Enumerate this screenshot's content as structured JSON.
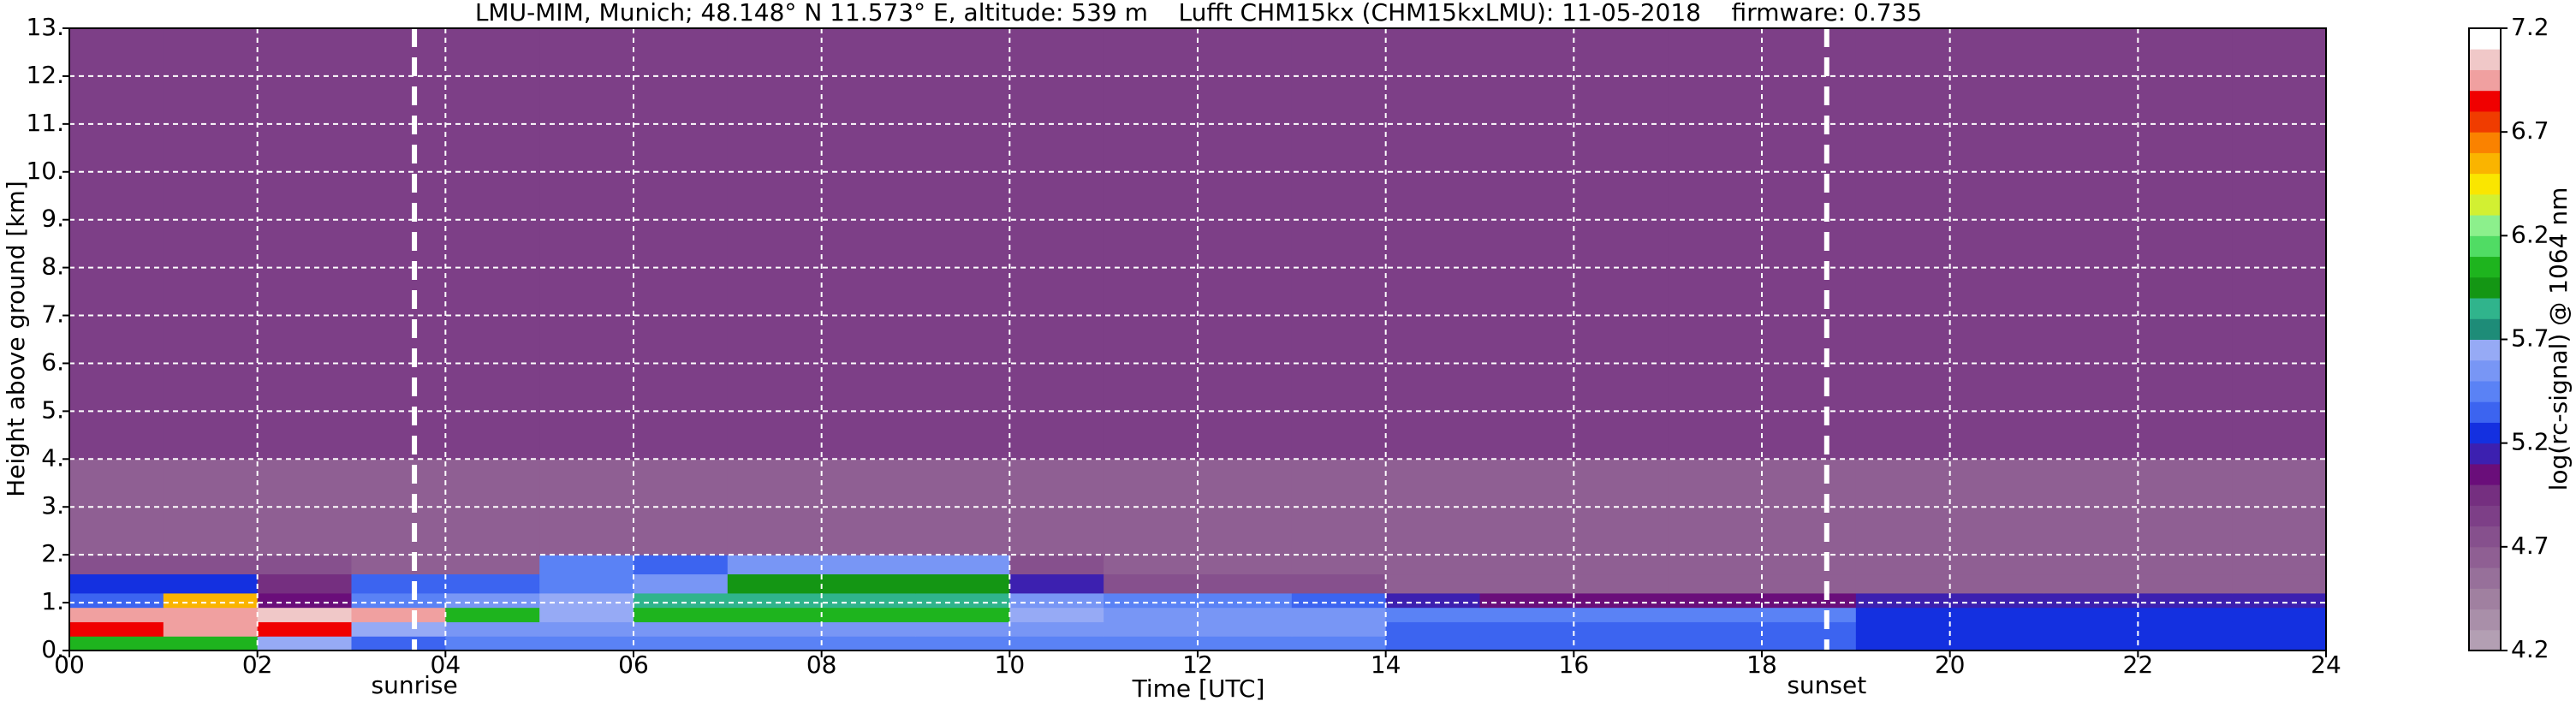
{
  "chart_data": {
    "type": "heatmap",
    "title": "LMU-MIM, Munich; 48.148° N 11.573° E, altitude: 539 m    Lufft CHM15kx (CHM15kxLMU): 11-05-2018    firmware: 0.735",
    "xlabel": "Time [UTC]",
    "ylabel": "Height above ground [km]",
    "colorbar_label": "log(rc-signal) @ 1064 nm",
    "xlim": [
      0,
      24
    ],
    "ylim": [
      0,
      13
    ],
    "xticks": [
      {
        "value": 0,
        "label": "00"
      },
      {
        "value": 2,
        "label": "02"
      },
      {
        "value": 4,
        "label": "04"
      },
      {
        "value": 6,
        "label": "06"
      },
      {
        "value": 8,
        "label": "08"
      },
      {
        "value": 10,
        "label": "10"
      },
      {
        "value": 12,
        "label": "12"
      },
      {
        "value": 14,
        "label": "14"
      },
      {
        "value": 16,
        "label": "16"
      },
      {
        "value": 18,
        "label": "18"
      },
      {
        "value": 20,
        "label": "20"
      },
      {
        "value": 22,
        "label": "22"
      },
      {
        "value": 24,
        "label": "24"
      }
    ],
    "yticks": [
      {
        "value": 0,
        "label": "0."
      },
      {
        "value": 1,
        "label": "1."
      },
      {
        "value": 2,
        "label": "2."
      },
      {
        "value": 3,
        "label": "3."
      },
      {
        "value": 4,
        "label": "4."
      },
      {
        "value": 5,
        "label": "5."
      },
      {
        "value": 6,
        "label": "6."
      },
      {
        "value": 7,
        "label": "7."
      },
      {
        "value": 8,
        "label": "8."
      },
      {
        "value": 9,
        "label": "9."
      },
      {
        "value": 10,
        "label": "10."
      },
      {
        "value": 11,
        "label": "11."
      },
      {
        "value": 12,
        "label": "12."
      },
      {
        "value": 13,
        "label": "13."
      }
    ],
    "grid": true,
    "x_edges": [
      0,
      1,
      2,
      3,
      4,
      5,
      6,
      7,
      8,
      9,
      10,
      11,
      12,
      13,
      14,
      15,
      16,
      17,
      18,
      19,
      20,
      21,
      22,
      23,
      24
    ],
    "y_edges": [
      0,
      0.3,
      0.6,
      0.9,
      1.2,
      1.6,
      2,
      4,
      13
    ],
    "z": [
      [
        6.0,
        6.0,
        5.6,
        5.3,
        5.4,
        5.4,
        5.4,
        5.4,
        5.4,
        5.4,
        5.4,
        5.4,
        5.4,
        5.4,
        5.3,
        5.3,
        5.3,
        5.3,
        5.3,
        5.2,
        5.2,
        5.2,
        5.2,
        5.2
      ],
      [
        6.8,
        6.9,
        6.8,
        5.6,
        5.5,
        5.5,
        5.5,
        5.5,
        5.5,
        5.5,
        5.5,
        5.5,
        5.5,
        5.5,
        5.3,
        5.3,
        5.3,
        5.3,
        5.3,
        5.2,
        5.2,
        5.2,
        5.2,
        5.2
      ],
      [
        6.9,
        6.9,
        7.0,
        6.9,
        6.0,
        5.6,
        6.0,
        6.0,
        6.0,
        6.0,
        5.6,
        5.5,
        5.5,
        5.5,
        5.4,
        5.4,
        5.4,
        5.4,
        5.4,
        5.2,
        5.2,
        5.2,
        5.2,
        5.2
      ],
      [
        5.3,
        6.5,
        5.0,
        5.4,
        5.5,
        5.6,
        5.8,
        5.8,
        5.8,
        5.8,
        5.5,
        5.4,
        5.4,
        5.3,
        5.1,
        5.0,
        5.0,
        5.0,
        5.0,
        5.1,
        5.1,
        5.1,
        5.1,
        5.1
      ],
      [
        5.2,
        5.2,
        4.9,
        5.3,
        5.3,
        5.4,
        5.5,
        5.9,
        5.9,
        5.9,
        5.1,
        4.7,
        4.7,
        4.7,
        4.6,
        4.6,
        4.6,
        4.6,
        4.6,
        4.6,
        4.6,
        4.6,
        4.6,
        4.6
      ],
      [
        4.7,
        4.7,
        4.7,
        4.6,
        4.6,
        5.4,
        5.3,
        5.5,
        5.5,
        5.5,
        4.7,
        4.6,
        4.6,
        4.6,
        4.6,
        4.6,
        4.6,
        4.6,
        4.6,
        4.6,
        4.6,
        4.6,
        4.6,
        4.6
      ],
      [
        4.6,
        4.6,
        4.6,
        4.6,
        4.6,
        4.6,
        4.6,
        4.6,
        4.6,
        4.6,
        4.6,
        4.6,
        4.6,
        4.6,
        4.6,
        4.6,
        4.6,
        4.6,
        4.6,
        4.6,
        4.6,
        4.6,
        4.6,
        4.6
      ],
      [
        4.8,
        4.8,
        4.8,
        4.8,
        4.8,
        4.8,
        4.8,
        4.8,
        4.8,
        4.8,
        4.8,
        4.8,
        4.8,
        4.8,
        4.8,
        4.8,
        4.8,
        4.8,
        4.8,
        4.8,
        4.8,
        4.8,
        4.8,
        4.8
      ]
    ],
    "clim": [
      4.2,
      7.2
    ],
    "cticks": [
      4.2,
      4.7,
      5.2,
      5.7,
      6.2,
      6.7,
      7.2
    ],
    "colormap": [
      "#b39fb3",
      "#a98fa9",
      "#a080a0",
      "#97709a",
      "#8f5f93",
      "#86508d",
      "#7d3f87",
      "#752f80",
      "#6a0e7a",
      "#3c20b0",
      "#1430e0",
      "#3c64f0",
      "#5a82f5",
      "#7896f5",
      "#96aaf5",
      "#1e8c78",
      "#30b48c",
      "#149614",
      "#1eb41e",
      "#50dc64",
      "#8cf08c",
      "#d2f032",
      "#fae600",
      "#fab400",
      "#fa8200",
      "#f03c00",
      "#f00000",
      "#f0a0a0",
      "#f0c8c8",
      "#ffffff"
    ],
    "annotations": [
      {
        "text": "sunrise",
        "x": 3.67
      },
      {
        "text": "sunset",
        "x": 18.69
      }
    ]
  }
}
